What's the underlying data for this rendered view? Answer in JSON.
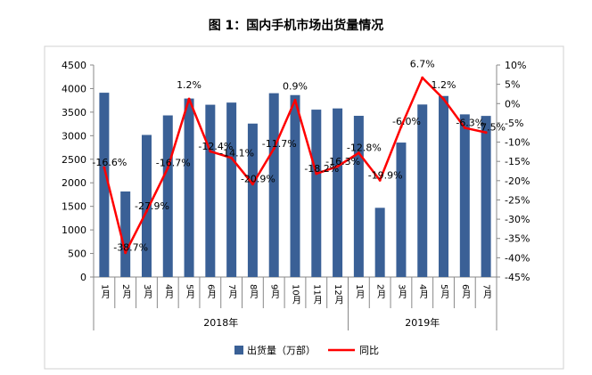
{
  "chart_data": {
    "type": "bar+line",
    "title": "图 1：国内手机市场出货量情况",
    "categories": [
      "1月",
      "2月",
      "3月",
      "4月",
      "5月",
      "6月",
      "7月",
      "8月",
      "9月",
      "10月",
      "11月",
      "12月",
      "1月",
      "2月",
      "3月",
      "4月",
      "5月",
      "6月",
      "7月"
    ],
    "groups": [
      {
        "label": "2018年",
        "count": 12
      },
      {
        "label": "2019年",
        "count": 7
      }
    ],
    "series": [
      {
        "name": "出货量（万部）",
        "type": "bar",
        "axis": "left",
        "color": "#3a6096",
        "values": [
          3912,
          1816,
          3016,
          3431,
          3789,
          3657,
          3703,
          3257,
          3902,
          3862,
          3553,
          3579,
          3422,
          1469,
          2854,
          3662,
          3843,
          3453,
          3420
        ]
      },
      {
        "name": "同比",
        "type": "line",
        "axis": "right",
        "color": "#ff0000",
        "values": [
          -16.6,
          -38.7,
          -27.9,
          -16.7,
          1.2,
          -12.4,
          -14.1,
          -20.9,
          -11.7,
          0.9,
          -18.2,
          -16.3,
          -12.8,
          -19.9,
          -6.0,
          6.7,
          1.2,
          -6.3,
          -7.5
        ],
        "labels": [
          "-16.6%",
          "-38.7%",
          "-27.9%",
          "-16.7%",
          "1.2%",
          "-12.4%",
          "-14.1%",
          "-20.9%",
          "-11.7%",
          "0.9%",
          "-18.2%",
          "-16.3%",
          "-12.8%",
          "-19.9%",
          "-6.0%",
          "6.7%",
          "1.2%",
          "-6.3%",
          "-7.5%"
        ]
      }
    ],
    "y_left": {
      "range": [
        0,
        4500
      ],
      "ticks": [
        "0",
        "500",
        "1000",
        "1500",
        "2000",
        "2500",
        "3000",
        "3500",
        "4000",
        "4500"
      ]
    },
    "y_right": {
      "range": [
        -45,
        10
      ],
      "ticks": [
        "-45%",
        "-40%",
        "-35%",
        "-30%",
        "-25%",
        "-20%",
        "-15%",
        "-10%",
        "-5%",
        "0%",
        "5%",
        "10%"
      ]
    },
    "legend": {
      "position": "bottom",
      "items": [
        "出货量（万部）",
        "同比"
      ]
    },
    "grid": false
  }
}
